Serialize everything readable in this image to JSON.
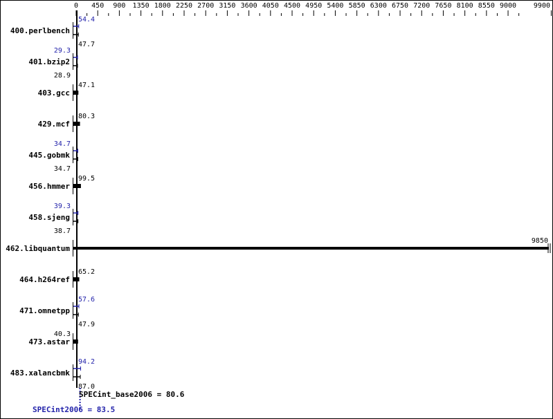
{
  "chart_data": {
    "type": "bar",
    "orientation": "horizontal",
    "xlim": [
      0,
      9900
    ],
    "x_ticks": [
      0,
      450,
      900,
      1350,
      1800,
      2250,
      2700,
      3150,
      3600,
      4050,
      4500,
      4950,
      5400,
      5850,
      6300,
      6750,
      7200,
      7650,
      8100,
      8550,
      9000,
      9900
    ],
    "categories": [
      "400.perlbench",
      "401.bzip2",
      "403.gcc",
      "429.mcf",
      "445.gobmk",
      "456.hmmer",
      "458.sjeng",
      "462.libquantum",
      "464.h264ref",
      "471.omnetpp",
      "473.astar",
      "483.xalancbmk"
    ],
    "series": [
      {
        "name": "SPECint_base2006",
        "color": "#000000",
        "values": [
          47.7,
          28.9,
          47.1,
          80.3,
          34.7,
          99.5,
          38.7,
          9850,
          65.2,
          47.9,
          40.3,
          87.0
        ]
      },
      {
        "name": "SPECint2006",
        "color": "#2222aa",
        "values": [
          54.4,
          29.3,
          null,
          null,
          34.7,
          null,
          39.3,
          null,
          null,
          57.6,
          null,
          94.2
        ]
      }
    ],
    "value_labels_base": [
      "47.7",
      "28.9",
      "47.1",
      "80.3",
      "34.7",
      "99.5",
      "38.7",
      "9850",
      "65.2",
      "47.9",
      "40.3",
      "87.0"
    ],
    "value_labels_peak": [
      "54.4",
      "29.3",
      null,
      null,
      "34.7",
      null,
      "39.3",
      null,
      null,
      "57.6",
      null,
      "94.2"
    ],
    "summary": {
      "base_label": "SPECint_base2006 = 80.6",
      "base_value": 80.6,
      "peak_label": "SPECint2006 = 83.5",
      "peak_value": 83.5
    }
  }
}
